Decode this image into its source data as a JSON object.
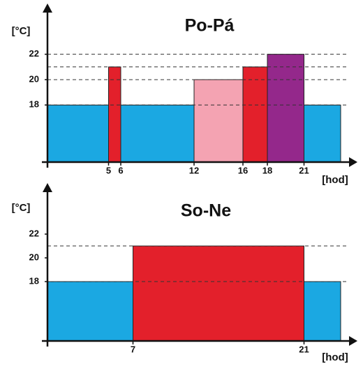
{
  "chart_data": [
    {
      "type": "bar",
      "title": "Po-Pá",
      "y_label": "[°C]",
      "x_label": "[hod]",
      "xlim": [
        0,
        24
      ],
      "ylim": [
        13.5,
        26
      ],
      "xticks": [
        5,
        6,
        12,
        16,
        18,
        21
      ],
      "yticks": [
        18,
        20,
        22
      ],
      "dashed_lines": [
        18,
        20,
        21,
        22
      ],
      "segments": [
        {
          "start": 0,
          "end": 12,
          "value": 18,
          "color": "#1ba8e2"
        },
        {
          "start": 5,
          "end": 6,
          "value": 21,
          "color": "#e3202b"
        },
        {
          "start": 12,
          "end": 16,
          "value": 20,
          "color": "#f4a3b2"
        },
        {
          "start": 16,
          "end": 18,
          "value": 21,
          "color": "#e3202b"
        },
        {
          "start": 18,
          "end": 21,
          "value": 22,
          "color": "#94288b"
        },
        {
          "start": 21,
          "end": 24,
          "value": 18,
          "color": "#1ba8e2"
        }
      ]
    },
    {
      "type": "bar",
      "title": "So-Ne",
      "y_label": "[°C]",
      "x_label": "[hod]",
      "xlim": [
        0,
        24
      ],
      "ylim": [
        13,
        26.3
      ],
      "xticks": [
        7,
        21
      ],
      "yticks": [
        18,
        20,
        22
      ],
      "dashed_lines": [
        18,
        21
      ],
      "segments": [
        {
          "start": 0,
          "end": 7,
          "value": 18,
          "color": "#1ba8e2"
        },
        {
          "start": 7,
          "end": 21,
          "value": 21,
          "color": "#e3202b"
        },
        {
          "start": 21,
          "end": 24,
          "value": 18,
          "color": "#1ba8e2"
        }
      ]
    }
  ]
}
